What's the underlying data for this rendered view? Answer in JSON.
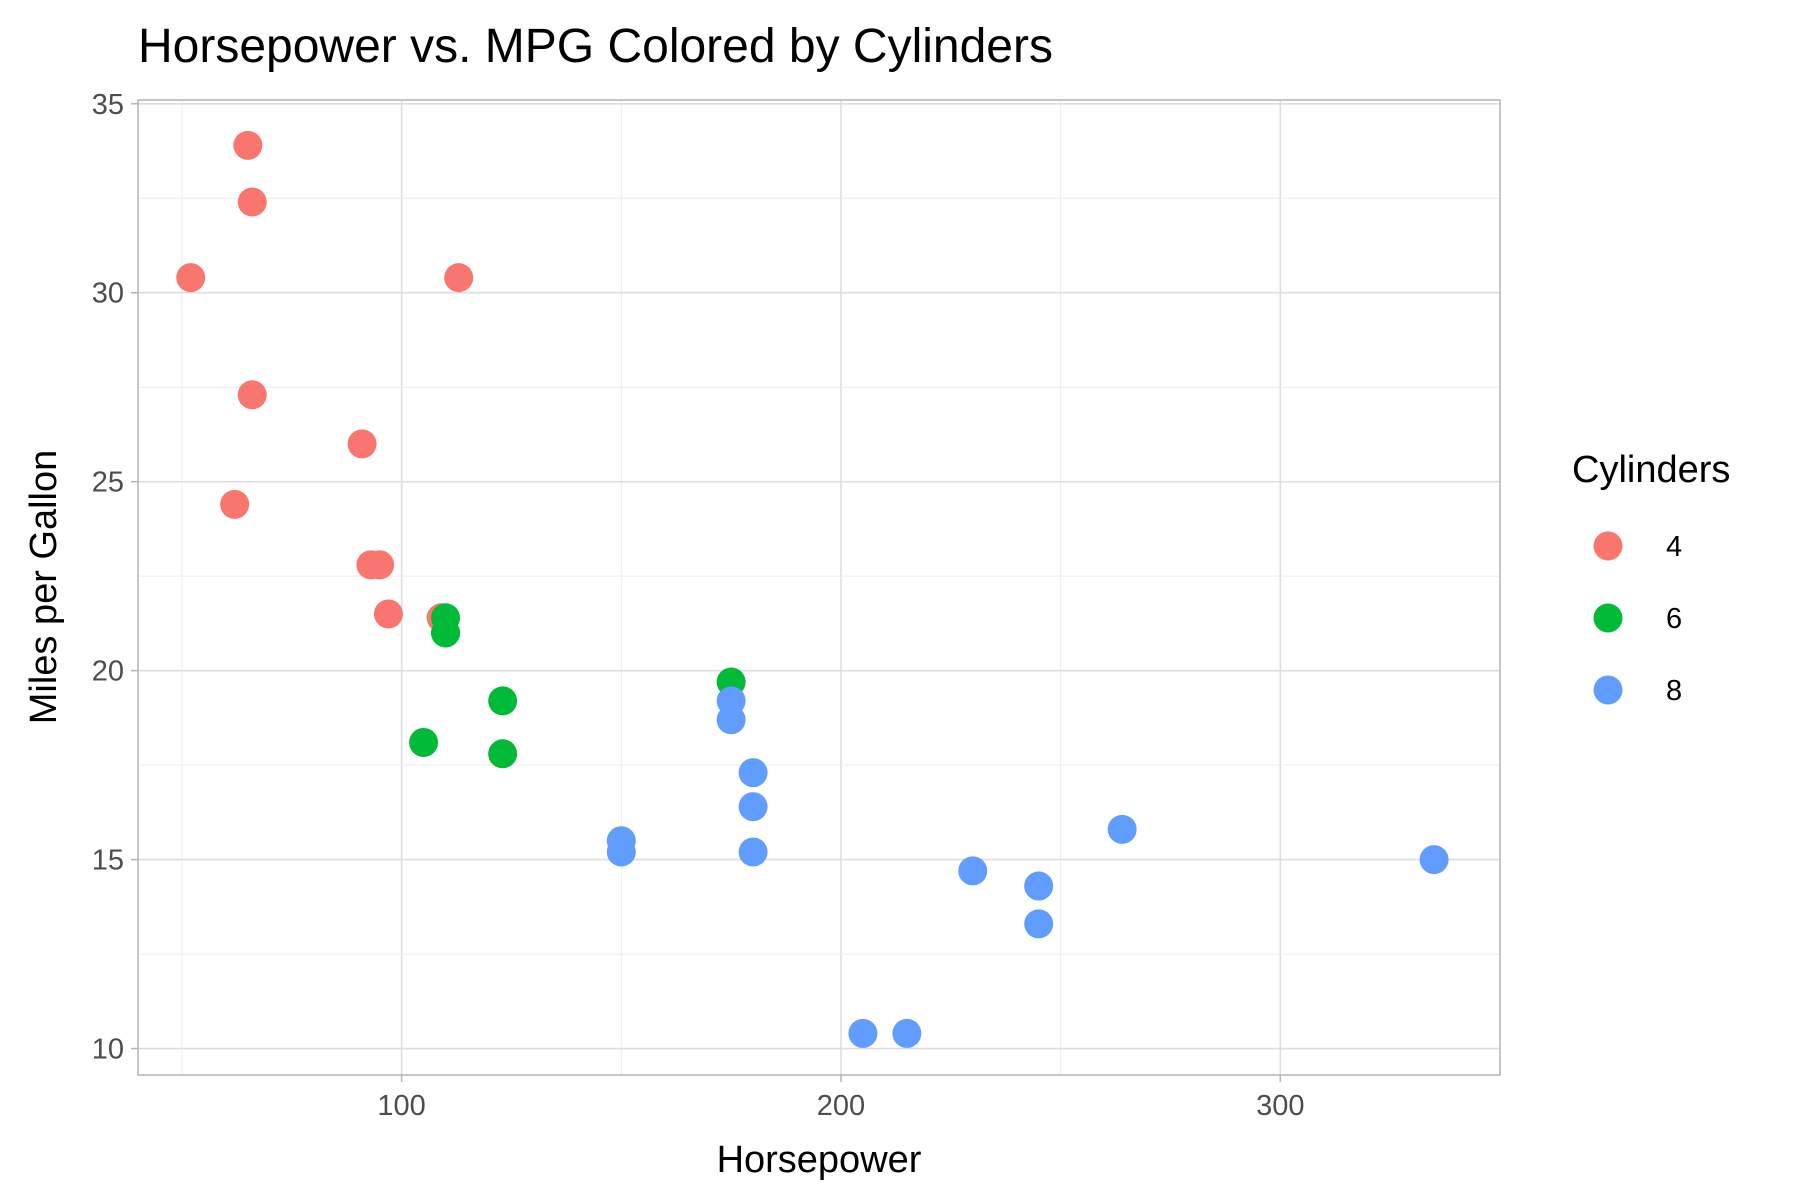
{
  "chart_data": {
    "type": "scatter",
    "title": "Horsepower vs. MPG Colored by Cylinders",
    "xlabel": "Horsepower",
    "ylabel": "Miles per Gallon",
    "xlim": [
      40,
      350
    ],
    "ylim": [
      9.3,
      35.1
    ],
    "x_ticks": [
      100,
      200,
      300
    ],
    "y_ticks": [
      10,
      15,
      20,
      25,
      30,
      35
    ],
    "grid": true,
    "legend": {
      "title": "Cylinders",
      "placement": "right"
    },
    "series": [
      {
        "name": "4",
        "color": "#F8766D",
        "points": [
          [
            52,
            30.4
          ],
          [
            62,
            24.4
          ],
          [
            65,
            33.9
          ],
          [
            66,
            32.4
          ],
          [
            66,
            27.3
          ],
          [
            91,
            26.0
          ],
          [
            93,
            22.8
          ],
          [
            95,
            22.8
          ],
          [
            97,
            21.5
          ],
          [
            109,
            21.4
          ],
          [
            113,
            30.4
          ]
        ]
      },
      {
        "name": "6",
        "color": "#00BA38",
        "points": [
          [
            105,
            18.1
          ],
          [
            110,
            21.0
          ],
          [
            110,
            21.0
          ],
          [
            110,
            21.4
          ],
          [
            123,
            19.2
          ],
          [
            123,
            17.8
          ],
          [
            175,
            19.7
          ]
        ]
      },
      {
        "name": "8",
        "color": "#619CFF",
        "points": [
          [
            150,
            15.5
          ],
          [
            150,
            15.2
          ],
          [
            175,
            18.7
          ],
          [
            175,
            19.2
          ],
          [
            180,
            16.4
          ],
          [
            180,
            17.3
          ],
          [
            180,
            15.2
          ],
          [
            205,
            10.4
          ],
          [
            215,
            10.4
          ],
          [
            230,
            14.7
          ],
          [
            245,
            14.3
          ],
          [
            245,
            13.3
          ],
          [
            264,
            15.8
          ],
          [
            335,
            15.0
          ]
        ]
      }
    ]
  }
}
